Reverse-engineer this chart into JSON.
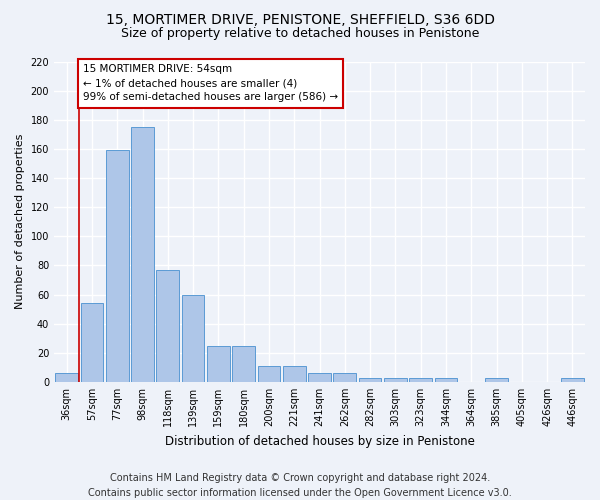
{
  "title1": "15, MORTIMER DRIVE, PENISTONE, SHEFFIELD, S36 6DD",
  "title2": "Size of property relative to detached houses in Penistone",
  "xlabel": "Distribution of detached houses by size in Penistone",
  "ylabel": "Number of detached properties",
  "footer1": "Contains HM Land Registry data © Crown copyright and database right 2024.",
  "footer2": "Contains public sector information licensed under the Open Government Licence v3.0.",
  "categories": [
    "36sqm",
    "57sqm",
    "77sqm",
    "98sqm",
    "118sqm",
    "139sqm",
    "159sqm",
    "180sqm",
    "200sqm",
    "221sqm",
    "241sqm",
    "262sqm",
    "282sqm",
    "303sqm",
    "323sqm",
    "344sqm",
    "364sqm",
    "385sqm",
    "405sqm",
    "426sqm",
    "446sqm"
  ],
  "values": [
    6,
    54,
    159,
    175,
    77,
    60,
    25,
    25,
    11,
    11,
    6,
    6,
    3,
    3,
    3,
    3,
    0,
    3,
    0,
    0,
    3
  ],
  "bar_color": "#aec6e8",
  "bar_edge_color": "#5b9bd5",
  "vline_x_index": 0.5,
  "vline_color": "#cc0000",
  "annotation_text": "15 MORTIMER DRIVE: 54sqm\n← 1% of detached houses are smaller (4)\n99% of semi-detached houses are larger (586) →",
  "annotation_box_color": "#ffffff",
  "annotation_box_edge": "#cc0000",
  "ylim": [
    0,
    220
  ],
  "yticks": [
    0,
    20,
    40,
    60,
    80,
    100,
    120,
    140,
    160,
    180,
    200,
    220
  ],
  "background_color": "#eef2f9",
  "grid_color": "#ffffff",
  "title1_fontsize": 10,
  "title2_fontsize": 9,
  "xlabel_fontsize": 8.5,
  "ylabel_fontsize": 8,
  "tick_fontsize": 7,
  "annotation_fontsize": 7.5,
  "footer_fontsize": 7
}
